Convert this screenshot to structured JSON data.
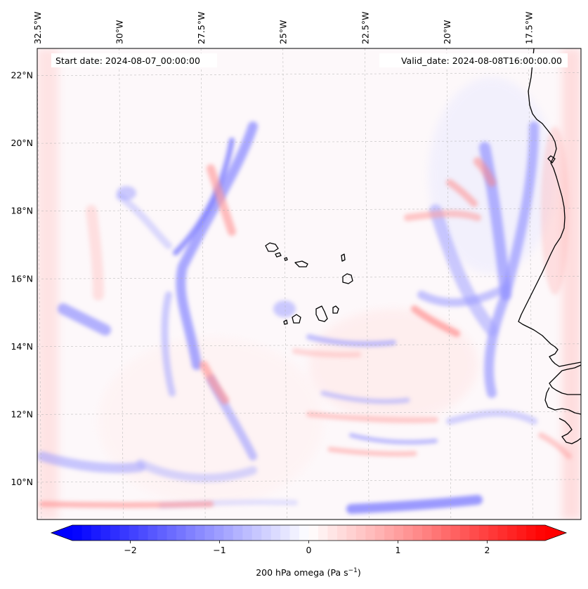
{
  "map": {
    "start_date": "Start date: 2024-08-07_00:00:00",
    "valid_date": "Valid_date: 2024-08-08T16:00:00.00",
    "lon_ticks": [
      {
        "value": -32.5,
        "label": "32.5°W"
      },
      {
        "value": -30.0,
        "label": "30°W"
      },
      {
        "value": -27.5,
        "label": "27.5°W"
      },
      {
        "value": -25.0,
        "label": "25°W"
      },
      {
        "value": -22.5,
        "label": "22.5°W"
      },
      {
        "value": -20.0,
        "label": "20°W"
      },
      {
        "value": -17.5,
        "label": "17.5°W"
      }
    ],
    "lat_ticks": [
      {
        "value": 22,
        "label": "22°N"
      },
      {
        "value": 20,
        "label": "20°N"
      },
      {
        "value": 18,
        "label": "18°N"
      },
      {
        "value": 16,
        "label": "16°N"
      },
      {
        "value": 14,
        "label": "14°N"
      },
      {
        "value": 12,
        "label": "12°N"
      },
      {
        "value": 10,
        "label": "10°N"
      }
    ],
    "lon_range": [
      -32.5,
      -15.9
    ],
    "lat_range": [
      8.9,
      22.8
    ],
    "gridlines": true,
    "colors": {
      "negative": "#0000ff",
      "neutral": "#ffffff",
      "positive": "#ff0000",
      "coastline": "#000000",
      "gridline": "#b0b0b0"
    }
  },
  "colorbar": {
    "label_prefix": "200 hPa omega (Pa s",
    "label_exponent": "−1",
    "label_suffix": ")",
    "range": [
      -2.65,
      2.65
    ],
    "extend": "both",
    "ticks": [
      {
        "value": -2,
        "label": "−2"
      },
      {
        "value": -1,
        "label": "−1"
      },
      {
        "value": 0,
        "label": "0"
      },
      {
        "value": 1,
        "label": "1"
      },
      {
        "value": 2,
        "label": "2"
      }
    ]
  }
}
